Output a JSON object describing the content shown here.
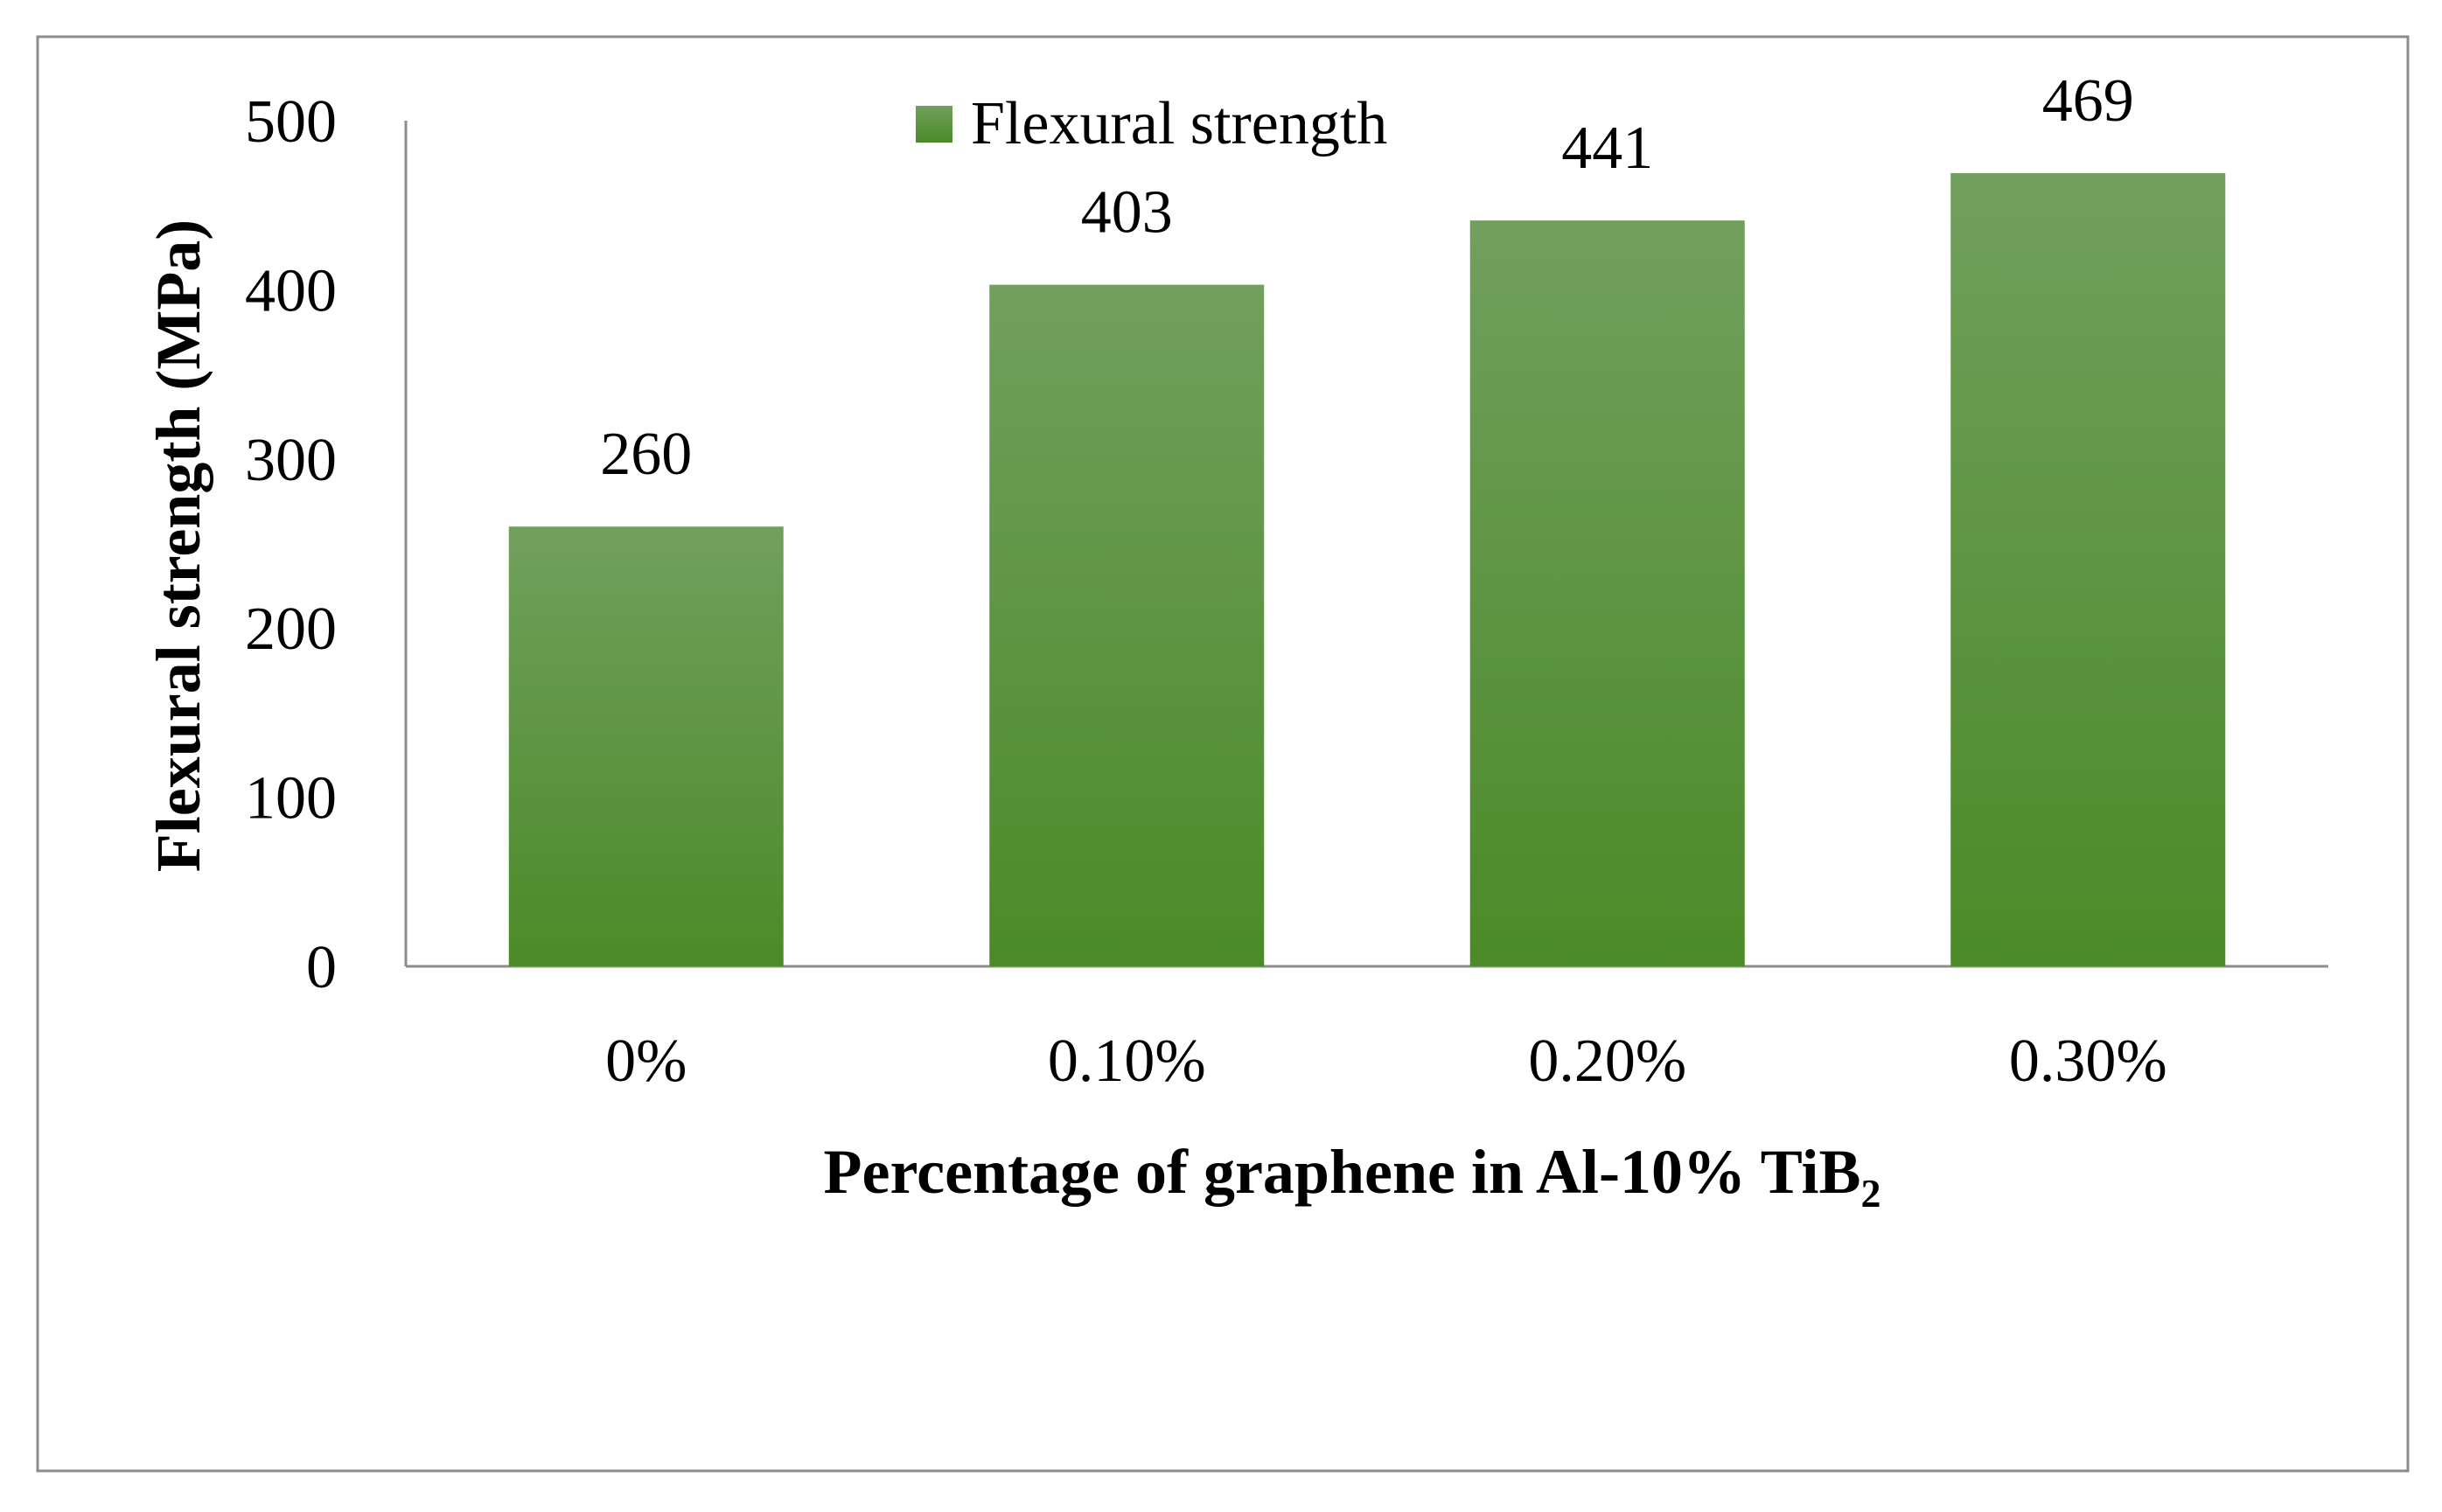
{
  "chart_data": {
    "type": "bar",
    "categories": [
      "0%",
      "0.10%",
      "0.20%",
      "0.30%"
    ],
    "series": [
      {
        "name": "Flexural strength",
        "values": [
          260,
          403,
          441,
          469
        ]
      }
    ],
    "data_labels": [
      "260",
      "403",
      "441",
      "469"
    ],
    "ylim": [
      0,
      500
    ],
    "yticks": [
      0,
      100,
      200,
      300,
      400,
      500
    ],
    "ylabel": "Flexural strength (MPa)",
    "xlabel": {
      "main": "Percentage of graphene in Al-10% TiB",
      "subscript": "2"
    },
    "legend_position": "top-center",
    "grid": false,
    "colors": {
      "bar_top": "#71a05d",
      "bar_bottom": "#4b8a28",
      "axis": "#8c8c8c",
      "frame": "#8c8c8c"
    }
  }
}
